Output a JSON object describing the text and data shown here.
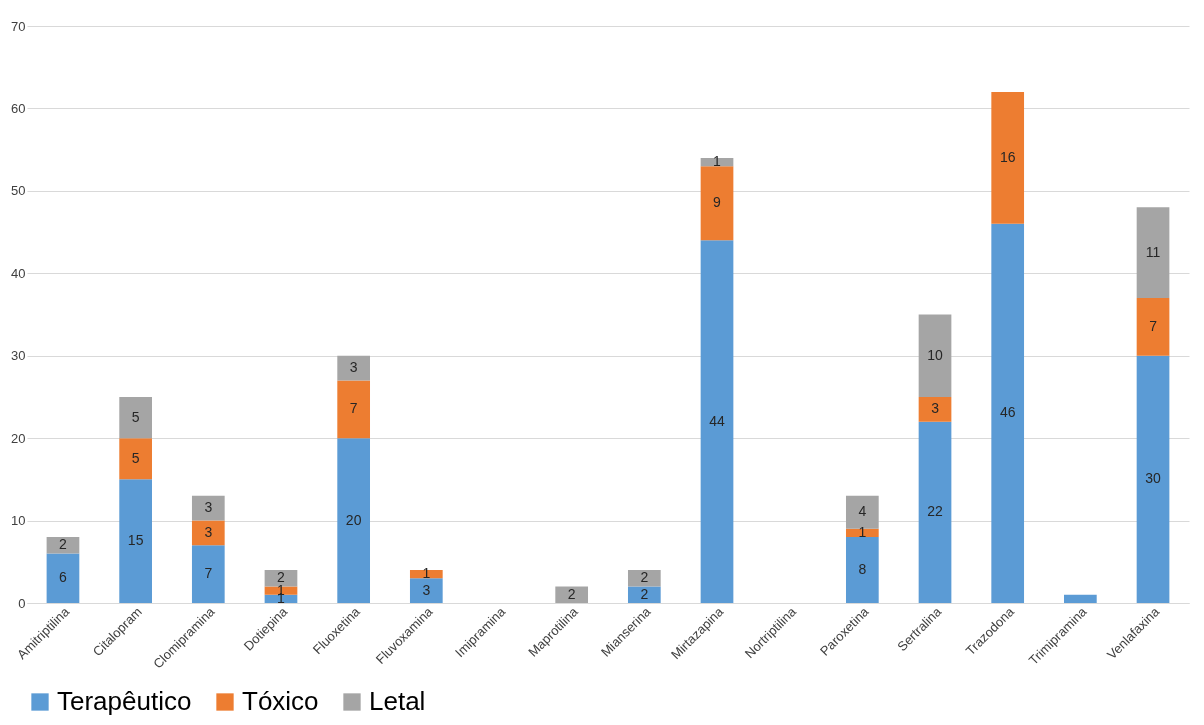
{
  "chart_data": {
    "type": "bar",
    "stacked": true,
    "categories": [
      "Amitriptilina",
      "Citalopram",
      "Clomipramina",
      "Dotiepina",
      "Fluoxetina",
      "Fluvoxamina",
      "Imipramina",
      "Maprotilina",
      "Mianserina",
      "Mirtazapina",
      "Nortriptilina",
      "Paroxetina",
      "Sertralina",
      "Trazodona",
      "Trimipramina",
      "Venlafaxina"
    ],
    "series": [
      {
        "name": "Terapêutico",
        "color": "#5b9bd5",
        "values": [
          6,
          15,
          7,
          1,
          20,
          3,
          null,
          null,
          2,
          44,
          null,
          8,
          22,
          46,
          1,
          30
        ],
        "value_labels": [
          "6",
          "15",
          "7",
          "1",
          "20",
          "3",
          null,
          null,
          "2",
          "44",
          null,
          "8",
          "22",
          "46",
          null,
          "30"
        ]
      },
      {
        "name": "Tóxico",
        "color": "#ed7d31",
        "values": [
          null,
          5,
          3,
          1,
          7,
          1,
          null,
          null,
          null,
          9,
          null,
          1,
          3,
          16,
          null,
          7
        ],
        "value_labels": [
          null,
          "5",
          "3",
          "1",
          "7",
          "1",
          null,
          null,
          null,
          "9",
          null,
          "1",
          "3",
          "16",
          null,
          "7"
        ]
      },
      {
        "name": "Letal",
        "color": "#a5a5a5",
        "values": [
          2,
          5,
          3,
          2,
          3,
          null,
          null,
          2,
          2,
          1,
          null,
          4,
          10,
          null,
          null,
          11
        ],
        "value_labels": [
          "2",
          "5",
          "3",
          "2",
          "3",
          null,
          null,
          "2",
          "2",
          "1",
          null,
          "4",
          "10",
          null,
          null,
          "11"
        ]
      }
    ],
    "ylim": [
      0,
      70
    ],
    "yticks": [
      0,
      10,
      20,
      30,
      40,
      50,
      60,
      70
    ],
    "grid": "y",
    "legend": "bottom"
  }
}
